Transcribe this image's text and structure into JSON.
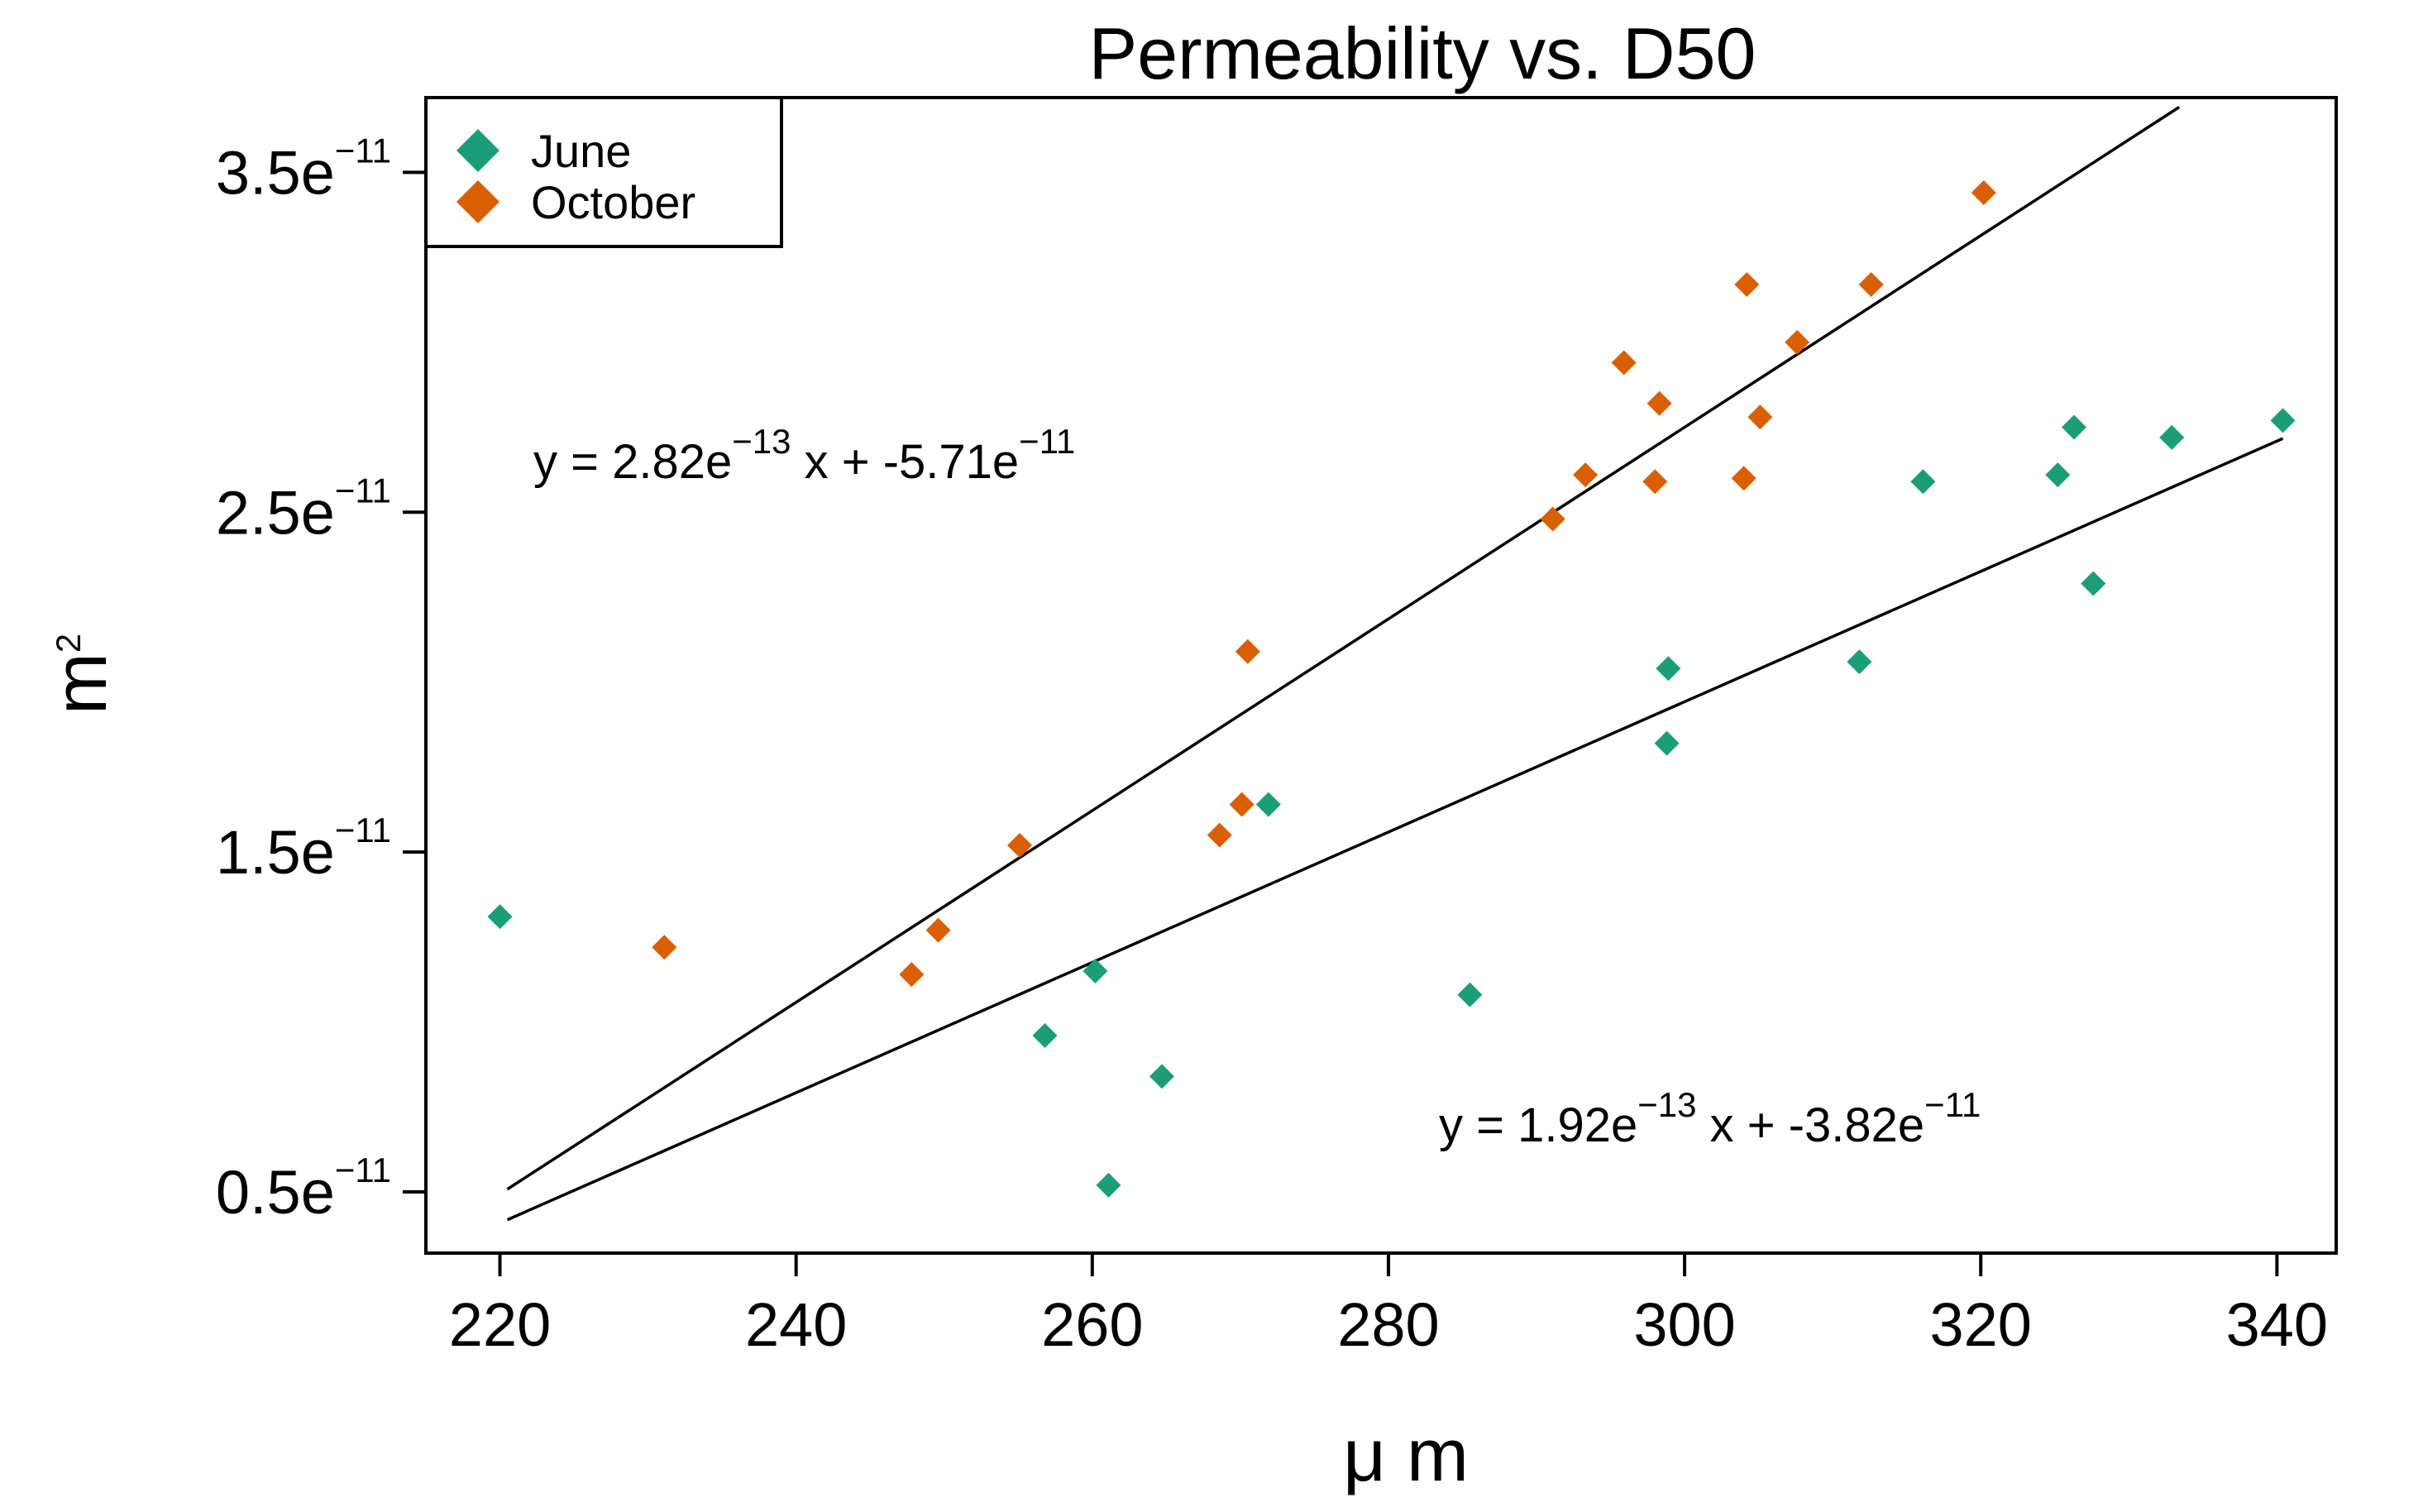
{
  "chart_data": {
    "type": "scatter",
    "title": "Permeability vs. D50",
    "xlabel": "μ m",
    "ylabel": "m",
    "ylabel_superscript": "2",
    "xlim": [
      215,
      344
    ],
    "ylim": [
      3.2e-12,
      3.72e-11
    ],
    "xticks": [
      220,
      240,
      260,
      280,
      300,
      320,
      340
    ],
    "yticks": [
      {
        "value": 5e-12,
        "mantissa": "0.5e",
        "exponent": "−11"
      },
      {
        "value": 1.5e-11,
        "mantissa": "1.5e",
        "exponent": "−11"
      },
      {
        "value": 2.5e-11,
        "mantissa": "2.5e",
        "exponent": "−11"
      },
      {
        "value": 3.5e-11,
        "mantissa": "3.5e",
        "exponent": "−11"
      }
    ],
    "legend_position": "top-left",
    "series": [
      {
        "name": "June",
        "color": "#1b9e77",
        "x": [
          220,
          256.8,
          260.2,
          261.1,
          264.7,
          271.9,
          285.5,
          298.8,
          298.9,
          311.8,
          316.1,
          325.2,
          326.3,
          327.6,
          332.9,
          340.4
        ],
        "y": [
          1.31e-11,
          9.6e-12,
          1.15e-11,
          5.2e-12,
          8.4e-12,
          1.64e-11,
          1.08e-11,
          1.82e-11,
          2.04e-11,
          2.06e-11,
          2.59e-11,
          2.61e-11,
          2.75e-11,
          2.29e-11,
          2.72e-11,
          2.77e-11
        ],
        "fit": {
          "x": [
            220.5,
            340.4
          ],
          "y": [
            4.18e-12,
            2.717e-11
          ]
        },
        "equation": {
          "prefix": "y = 1.92e",
          "exp1": "−13",
          "middle": " x + -3.82e",
          "exp2": "−11"
        }
      },
      {
        "name": "October",
        "color": "#d95f02",
        "x": [
          231.1,
          247.8,
          249.6,
          255.1,
          268.6,
          270.1,
          270.5,
          291.1,
          293.3,
          295.9,
          298,
          298.3,
          304,
          304.2,
          305.1,
          307.6,
          312.6,
          320.2
        ],
        "y": [
          1.22e-11,
          1.14e-11,
          1.27e-11,
          1.52e-11,
          1.55e-11,
          1.64e-11,
          2.09e-11,
          2.48e-11,
          2.61e-11,
          2.94e-11,
          2.59e-11,
          2.82e-11,
          2.6e-11,
          3.17e-11,
          2.78e-11,
          3e-11,
          3.17e-11,
          3.44e-11
        ],
        "fit": {
          "x": [
            220.5,
            333.4
          ],
          "y": [
            5.08e-12,
            3.692e-11
          ]
        },
        "equation": {
          "prefix": "y = 2.82e",
          "exp1": "−13",
          "middle": " x + -5.71e",
          "exp2": "−11"
        }
      }
    ]
  }
}
